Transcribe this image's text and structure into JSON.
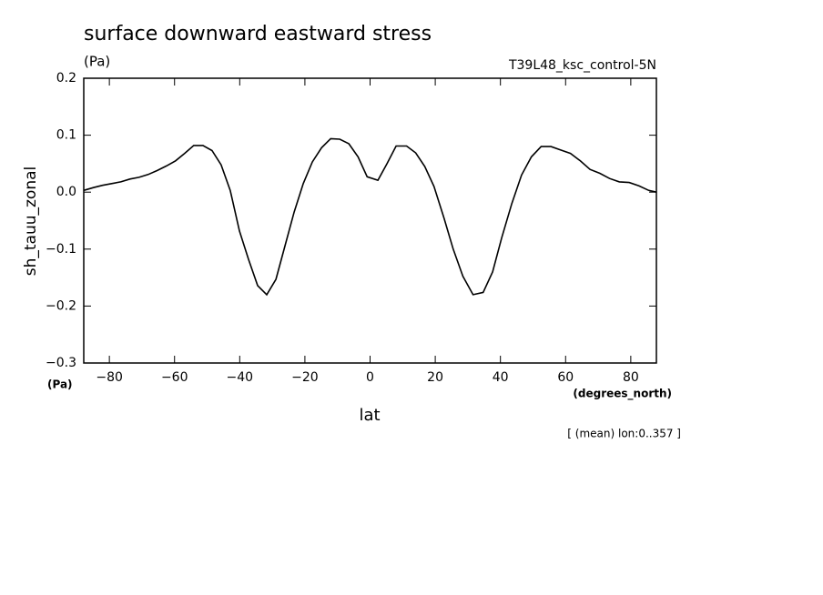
{
  "chart_data": {
    "type": "line",
    "title": "surface downward eastward stress",
    "subtitle": "(Pa)",
    "run_label": "T39L48_ksc_control-5N",
    "y_label": "sh_tauu_zonal",
    "y_unit": "(Pa)",
    "x_label": "lat",
    "x_unit": "(degrees_north)",
    "annotation": "[ (mean) lon:0..357 ]",
    "xlim": [
      -87.86,
      87.86
    ],
    "ylim": [
      -0.3,
      0.2
    ],
    "xticks": [
      {
        "value": -80,
        "label": "−80"
      },
      {
        "value": -60,
        "label": "−60"
      },
      {
        "value": -40,
        "label": "−40"
      },
      {
        "value": -20,
        "label": "−20"
      },
      0,
      20,
      40,
      60,
      80
    ],
    "yticks": [
      {
        "value": -0.3,
        "label": "−0.3"
      },
      {
        "value": -0.2,
        "label": "−0.2"
      },
      {
        "value": -0.1,
        "label": "−0.1"
      },
      {
        "value": 0,
        "label": "0.0"
      },
      0.1,
      0.2
    ],
    "series": [
      {
        "color": "#000000",
        "x": [
          -87.9,
          -84.9,
          -82.1,
          -79.3,
          -76.5,
          -73.7,
          -70.9,
          -68.1,
          -65.3,
          -62.5,
          -59.7,
          -56.9,
          -54.1,
          -51.3,
          -48.5,
          -45.7,
          -42.9,
          -40.1,
          -37.3,
          -34.5,
          -31.7,
          -28.9,
          -26.1,
          -23.3,
          -20.5,
          -17.7,
          -14.9,
          -12.1,
          -9.3,
          -6.5,
          -3.7,
          -0.9,
          2.4,
          5.2,
          8.0,
          11.2,
          14.0,
          16.8,
          19.6,
          22.7,
          25.5,
          28.5,
          31.6,
          34.7,
          37.6,
          40.4,
          43.5,
          46.5,
          49.5,
          52.5,
          55.5,
          58.5,
          61.5,
          64.5,
          67.5,
          70.5,
          73.5,
          76.5,
          79.5,
          82.5,
          85.5,
          87.9
        ],
        "values": [
          0.003,
          0.008,
          0.012,
          0.015,
          0.018,
          0.023,
          0.026,
          0.031,
          0.038,
          0.046,
          0.055,
          0.068,
          0.082,
          0.082,
          0.073,
          0.048,
          0.003,
          -0.068,
          -0.118,
          -0.164,
          -0.18,
          -0.153,
          -0.094,
          -0.035,
          0.015,
          0.053,
          0.078,
          0.094,
          0.093,
          0.085,
          0.062,
          0.027,
          0.021,
          0.05,
          0.081,
          0.081,
          0.069,
          0.045,
          0.01,
          -0.046,
          -0.1,
          -0.148,
          -0.18,
          -0.176,
          -0.14,
          -0.08,
          -0.02,
          0.03,
          0.062,
          0.08,
          0.08,
          0.074,
          0.068,
          0.055,
          0.04,
          0.033,
          0.024,
          0.018,
          0.017,
          0.011,
          0.003,
          0.0
        ]
      }
    ]
  }
}
